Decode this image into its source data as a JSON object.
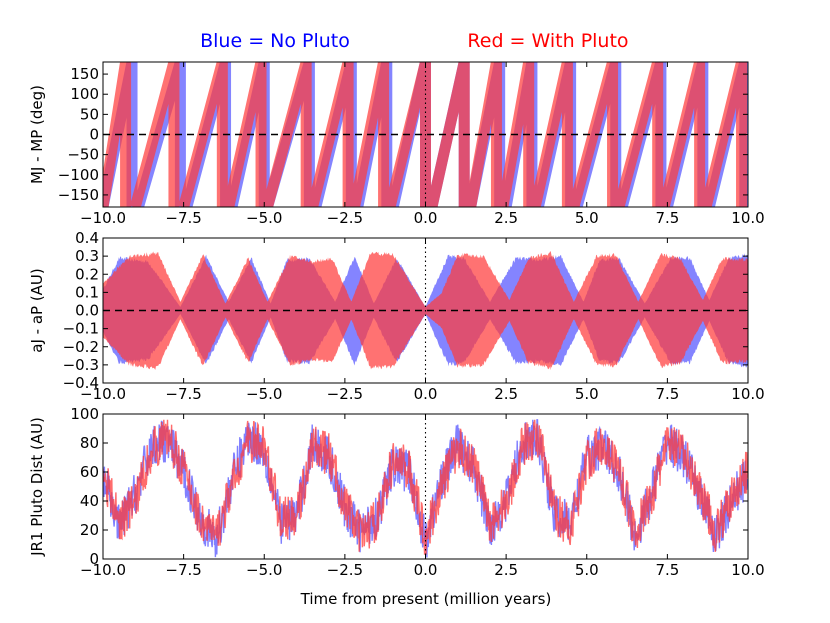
{
  "legend": {
    "blue": {
      "text": "Blue = No Pluto",
      "color": "#0000ff"
    },
    "red": {
      "text": "Red = With Pluto",
      "color": "#ff0000"
    }
  },
  "colors": {
    "blue_series": "#5555ff",
    "red_series": "#ff3b3b",
    "overlap": "#c01a50"
  },
  "chart_data": [
    {
      "type": "line",
      "id": "phase",
      "ylabel": "MJ - MP (deg)",
      "xlim": [
        -10,
        10
      ],
      "ylim": [
        -180,
        180
      ],
      "xticks": [
        "−10.0",
        "−7.5",
        "−5.0",
        "−2.5",
        "0.0",
        "2.5",
        "5.0",
        "7.5",
        "10.0"
      ],
      "xtick_values": [
        -10,
        -7.5,
        -5,
        -2.5,
        0,
        2.5,
        5,
        7.5,
        10
      ],
      "yticks": [
        "150",
        "100",
        "50",
        "0",
        "−50",
        "−100",
        "−150"
      ],
      "ytick_values": [
        150,
        100,
        50,
        0,
        -50,
        -100,
        -150
      ],
      "zero_line": "dashed",
      "present_line": "dotted",
      "series": [
        {
          "color_key": "blue_series",
          "style": "sawtooth",
          "x": [
            -10.0,
            -9.1,
            -8.9,
            -7.6,
            -7.4,
            -6.2,
            -6.0,
            -5.0,
            -4.9,
            -3.6,
            -3.4,
            -2.3,
            -2.1,
            -1.2,
            -1.0,
            0.0,
            0.2,
            1.2,
            1.4,
            2.3,
            2.5,
            3.3,
            3.5,
            4.5,
            4.7,
            5.9,
            6.1,
            7.3,
            7.5,
            8.6,
            8.8,
            9.9
          ]
        },
        {
          "color_key": "red_series",
          "style": "sawtooth",
          "x": [
            -10.0,
            -9.3,
            -9.0,
            -7.8,
            -7.5,
            -6.3,
            -6.1,
            -5.1,
            -4.9,
            -3.7,
            -3.5,
            -2.4,
            -2.2,
            -1.3,
            -1.1,
            0.0,
            0.2,
            1.2,
            1.4,
            2.2,
            2.4,
            3.2,
            3.4,
            4.4,
            4.6,
            5.8,
            6.0,
            7.2,
            7.4,
            8.5,
            8.7,
            9.8
          ]
        }
      ]
    },
    {
      "type": "area",
      "id": "sma",
      "ylabel": "aJ - aP (AU)",
      "xlim": [
        -10,
        10
      ],
      "ylim": [
        -0.4,
        0.4
      ],
      "xticks": [
        "−10.0",
        "−7.5",
        "−5.0",
        "−2.5",
        "0.0",
        "2.5",
        "5.0",
        "7.5",
        "10.0"
      ],
      "xtick_values": [
        -10,
        -7.5,
        -5,
        -2.5,
        0,
        2.5,
        5,
        7.5,
        10
      ],
      "yticks": [
        "0.4",
        "0.3",
        "0.2",
        "0.1",
        "0.0",
        "−0.1",
        "−0.2",
        "−0.3",
        "−0.4"
      ],
      "ytick_values": [
        0.4,
        0.3,
        0.2,
        0.1,
        0,
        -0.1,
        -0.2,
        -0.3,
        -0.4
      ],
      "zero_line": "dashed",
      "present_line": "dotted",
      "series": [
        {
          "color_key": "blue_series",
          "x": [
            -10,
            -9.5,
            -8.6,
            -7.6,
            -6.8,
            -6.1,
            -5.4,
            -4.8,
            -4.3,
            -3.6,
            -2.8,
            -2.2,
            -1.6,
            -0.9,
            0,
            0.3,
            0.7,
            1.2,
            2.0,
            2.8,
            3.5,
            4.2,
            4.9,
            5.4,
            6.0,
            6.8,
            7.6,
            8.2,
            8.8,
            9.4,
            10
          ],
          "amplitude": [
            0.12,
            0.3,
            0.28,
            0.02,
            0.31,
            0.05,
            0.3,
            0.04,
            0.29,
            0.3,
            0.05,
            0.31,
            0.04,
            0.3,
            0.02,
            0.15,
            0.31,
            0.3,
            0.05,
            0.3,
            0.29,
            0.31,
            0.05,
            0.29,
            0.3,
            0.04,
            0.3,
            0.3,
            0.06,
            0.3,
            0.32
          ]
        },
        {
          "color_key": "red_series",
          "x": [
            -10,
            -9.2,
            -8.3,
            -7.6,
            -6.9,
            -6.2,
            -5.5,
            -4.9,
            -4.2,
            -3.5,
            -2.9,
            -2.3,
            -1.7,
            -1.0,
            0,
            0.5,
            1.0,
            1.8,
            2.6,
            3.2,
            3.9,
            4.6,
            5.3,
            5.9,
            6.6,
            7.3,
            7.9,
            8.6,
            9.2,
            10
          ],
          "amplitude": [
            0.15,
            0.31,
            0.33,
            0.05,
            0.32,
            0.04,
            0.3,
            0.05,
            0.31,
            0.28,
            0.3,
            0.05,
            0.33,
            0.32,
            0.02,
            0.1,
            0.32,
            0.31,
            0.06,
            0.3,
            0.33,
            0.05,
            0.31,
            0.32,
            0.05,
            0.32,
            0.3,
            0.06,
            0.3,
            0.29
          ]
        }
      ]
    },
    {
      "type": "line",
      "id": "distance",
      "ylabel": "JR1 Pluto Dist (AU)",
      "xlabel": "Time from present (million years)",
      "xlim": [
        -10,
        10
      ],
      "ylim": [
        0,
        100
      ],
      "xticks": [
        "−10.0",
        "−7.5",
        "−5.0",
        "−2.5",
        "0.0",
        "2.5",
        "5.0",
        "7.5",
        "10.0"
      ],
      "xtick_values": [
        -10,
        -7.5,
        -5,
        -2.5,
        0,
        2.5,
        5,
        7.5,
        10
      ],
      "yticks": [
        "100",
        "80",
        "60",
        "40",
        "20",
        "0"
      ],
      "ytick_values": [
        100,
        80,
        60,
        40,
        20,
        0
      ],
      "present_line": "dotted",
      "series": [
        {
          "color_key": "blue_series",
          "x": [
            -10,
            -9.5,
            -9.0,
            -8.5,
            -8.0,
            -7.5,
            -7.0,
            -6.5,
            -6.0,
            -5.5,
            -5.0,
            -4.5,
            -4.0,
            -3.5,
            -3.0,
            -2.5,
            -2.0,
            -1.5,
            -1.0,
            -0.5,
            0,
            0.5,
            1.0,
            1.5,
            2.0,
            2.5,
            3.0,
            3.5,
            4.0,
            4.5,
            5.0,
            5.5,
            6.0,
            6.5,
            7.0,
            7.5,
            8.0,
            8.5,
            9.0,
            9.5,
            10
          ],
          "y": [
            55,
            22,
            45,
            78,
            82,
            60,
            30,
            12,
            55,
            85,
            75,
            25,
            30,
            80,
            70,
            35,
            18,
            30,
            65,
            60,
            12,
            55,
            80,
            62,
            22,
            40,
            80,
            82,
            30,
            25,
            70,
            78,
            60,
            15,
            45,
            82,
            70,
            45,
            15,
            40,
            60
          ]
        },
        {
          "color_key": "red_series",
          "x": [
            -10,
            -9.5,
            -9.0,
            -8.5,
            -8.0,
            -7.5,
            -7.0,
            -6.5,
            -6.0,
            -5.5,
            -5.0,
            -4.5,
            -4.0,
            -3.5,
            -3.0,
            -2.5,
            -2.0,
            -1.5,
            -1.0,
            -0.5,
            0,
            0.5,
            1.0,
            1.5,
            2.0,
            2.5,
            3.0,
            3.5,
            4.0,
            4.5,
            5.0,
            5.5,
            6.0,
            6.5,
            7.0,
            7.5,
            8.0,
            8.5,
            9.0,
            9.5,
            10
          ],
          "y": [
            60,
            25,
            40,
            75,
            85,
            62,
            28,
            15,
            50,
            82,
            78,
            28,
            28,
            78,
            72,
            38,
            15,
            28,
            68,
            62,
            15,
            50,
            78,
            65,
            25,
            38,
            78,
            85,
            32,
            22,
            68,
            80,
            62,
            18,
            42,
            80,
            72,
            48,
            18,
            42,
            62
          ]
        }
      ]
    }
  ]
}
